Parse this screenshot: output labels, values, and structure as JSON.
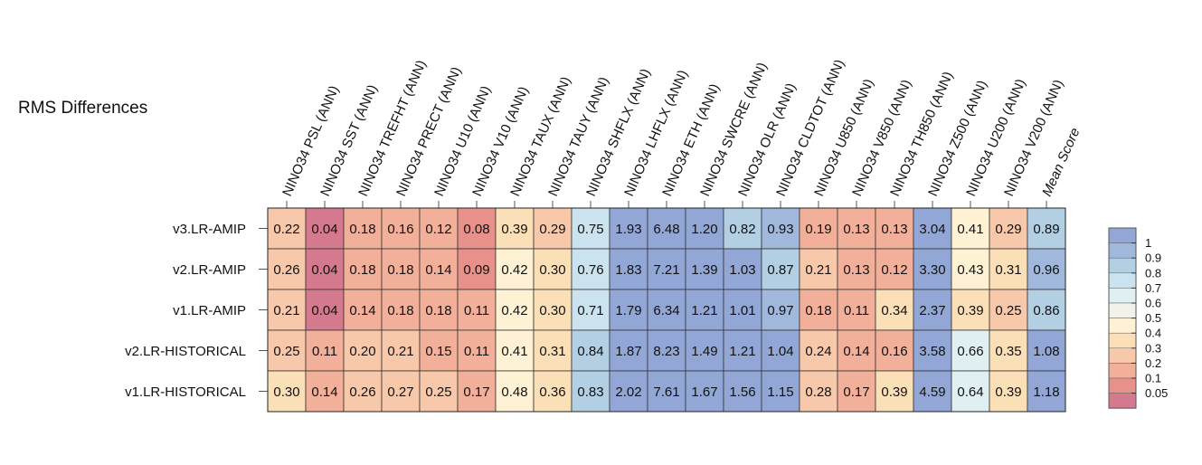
{
  "chart_data": {
    "type": "heatmap",
    "title": "RMS Differences",
    "columns": [
      "NINO34 PSL (ANN)",
      "NINO34 SST (ANN)",
      "NINO34 TREFHT (ANN)",
      "NINO34 PRECT (ANN)",
      "NINO34 U10 (ANN)",
      "NINO34 V10 (ANN)",
      "NINO34 TAUX (ANN)",
      "NINO34 TAUY (ANN)",
      "NINO34 SHFLX (ANN)",
      "NINO34 LHFLX (ANN)",
      "NINO34 ETH (ANN)",
      "NINO34 SWCRE (ANN)",
      "NINO34 OLR (ANN)",
      "NINO34 CLDTOT (ANN)",
      "NINO34 U850 (ANN)",
      "NINO34 V850 (ANN)",
      "NINO34 TH850 (ANN)",
      "NINO34 Z500 (ANN)",
      "NINO34 U200 (ANN)",
      "NINO34 V200 (ANN)",
      "Mean Score"
    ],
    "rows": [
      "v3.LR-AMIP",
      "v2.LR-AMIP",
      "v1.LR-AMIP",
      "v2.LR-HISTORICAL",
      "v1.LR-HISTORICAL"
    ],
    "values": [
      [
        "0.22",
        "0.04",
        "0.18",
        "0.16",
        "0.12",
        "0.08",
        "0.39",
        "0.29",
        "0.75",
        "1.93",
        "6.48",
        "1.20",
        "0.82",
        "0.93",
        "0.19",
        "0.13",
        "0.13",
        "3.04",
        "0.41",
        "0.29",
        "0.89"
      ],
      [
        "0.26",
        "0.04",
        "0.18",
        "0.18",
        "0.14",
        "0.09",
        "0.42",
        "0.30",
        "0.76",
        "1.83",
        "7.21",
        "1.39",
        "1.03",
        "0.87",
        "0.21",
        "0.13",
        "0.12",
        "3.30",
        "0.43",
        "0.31",
        "0.96"
      ],
      [
        "0.21",
        "0.04",
        "0.14",
        "0.18",
        "0.18",
        "0.11",
        "0.42",
        "0.30",
        "0.71",
        "1.79",
        "6.34",
        "1.21",
        "1.01",
        "0.97",
        "0.18",
        "0.11",
        "0.34",
        "2.37",
        "0.39",
        "0.25",
        "0.86"
      ],
      [
        "0.25",
        "0.11",
        "0.20",
        "0.21",
        "0.15",
        "0.11",
        "0.41",
        "0.31",
        "0.84",
        "1.87",
        "8.23",
        "1.49",
        "1.21",
        "1.04",
        "0.24",
        "0.14",
        "0.16",
        "3.58",
        "0.66",
        "0.35",
        "1.08"
      ],
      [
        "0.30",
        "0.14",
        "0.26",
        "0.27",
        "0.25",
        "0.17",
        "0.48",
        "0.36",
        "0.83",
        "2.02",
        "7.61",
        "1.67",
        "1.56",
        "1.15",
        "0.28",
        "0.17",
        "0.39",
        "4.59",
        "0.64",
        "0.39",
        "1.18"
      ]
    ],
    "colorbar": {
      "ticks": [
        "1",
        "0.9",
        "0.8",
        "0.7",
        "0.6",
        "0.5",
        "0.4",
        "0.3",
        "0.2",
        "0.1",
        "0.05"
      ],
      "bounds": [
        0.0,
        0.05,
        0.1,
        0.2,
        0.3,
        0.4,
        0.5,
        0.6,
        0.7,
        0.8,
        0.9,
        1.0,
        100
      ],
      "colors": [
        "#d57a8e",
        "#e8908a",
        "#f2b09a",
        "#f7c9aa",
        "#fbe0b7",
        "#fff2d4",
        "#f2f2ea",
        "#e0eff2",
        "#cae3ee",
        "#b2cfe3",
        "#a0b8dc",
        "#93a7d6"
      ]
    }
  }
}
